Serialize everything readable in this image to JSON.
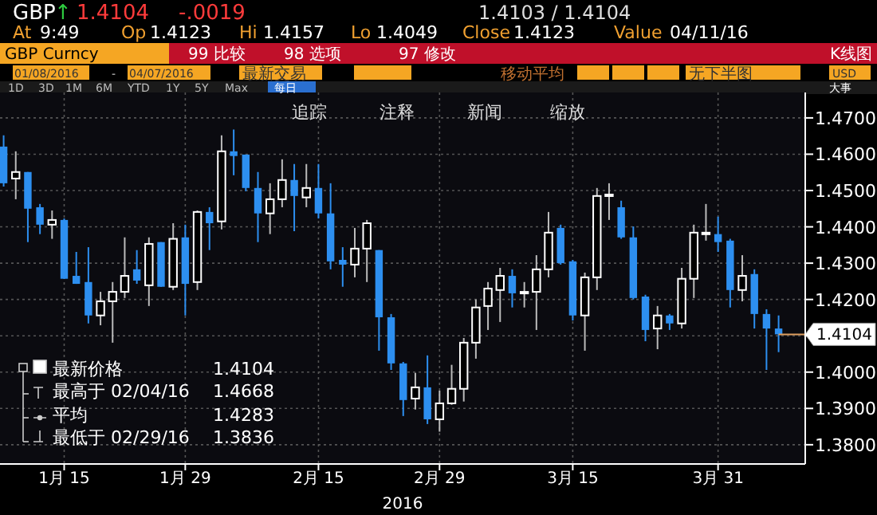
{
  "chart_data": {
    "type": "candlestick",
    "ohlc": [
      [
        1.4621,
        1.4652,
        1.4511,
        1.452
      ],
      [
        1.4533,
        1.4608,
        1.4476,
        1.4551
      ],
      [
        1.4551,
        1.4551,
        1.4358,
        1.445
      ],
      [
        1.4454,
        1.4463,
        1.438,
        1.4406
      ],
      [
        1.4406,
        1.4445,
        1.4367,
        1.4419
      ],
      [
        1.4419,
        1.4423,
        1.4257,
        1.4257
      ],
      [
        1.4265,
        1.4331,
        1.4243,
        1.4243
      ],
      [
        1.4248,
        1.4344,
        1.4134,
        1.4156
      ],
      [
        1.4156,
        1.4221,
        1.4129,
        1.4195
      ],
      [
        1.4195,
        1.4248,
        1.4081,
        1.4221
      ],
      [
        1.4221,
        1.4371,
        1.4204,
        1.4265
      ],
      [
        1.4283,
        1.4336,
        1.4243,
        1.4252
      ],
      [
        1.4239,
        1.4371,
        1.4182,
        1.4353
      ],
      [
        1.4358,
        1.4358,
        1.4235,
        1.4235
      ],
      [
        1.4235,
        1.441,
        1.4226,
        1.4367
      ],
      [
        1.4371,
        1.4406,
        1.4156,
        1.4243
      ],
      [
        1.4248,
        1.4445,
        1.4226,
        1.4441
      ],
      [
        1.4441,
        1.4454,
        1.4336,
        1.441
      ],
      [
        1.4415,
        1.4652,
        1.4393,
        1.4608
      ],
      [
        1.4608,
        1.4668,
        1.4542,
        1.4595
      ],
      [
        1.4599,
        1.4599,
        1.4498,
        1.4507
      ],
      [
        1.4507,
        1.4551,
        1.4358,
        1.4437
      ],
      [
        1.4437,
        1.452,
        1.438,
        1.4476
      ],
      [
        1.4476,
        1.4586,
        1.4454,
        1.4529
      ],
      [
        1.4529,
        1.4573,
        1.4388,
        1.4485
      ],
      [
        1.4481,
        1.4573,
        1.4454,
        1.4507
      ],
      [
        1.4507,
        1.4573,
        1.4423,
        1.4437
      ],
      [
        1.4437,
        1.452,
        1.4283,
        1.4305
      ],
      [
        1.4309,
        1.4344,
        1.4235,
        1.4296
      ],
      [
        1.4296,
        1.4397,
        1.4261,
        1.434
      ],
      [
        1.434,
        1.4419,
        1.4248,
        1.441
      ],
      [
        1.4336,
        1.4336,
        1.4059,
        1.4151
      ],
      [
        1.4151,
        1.416,
        1.4006,
        1.4024
      ],
      [
        1.4024,
        1.4028,
        1.3879,
        1.3923
      ],
      [
        1.3927,
        1.3998,
        1.3897,
        1.3958
      ],
      [
        1.3958,
        1.4046,
        1.3857,
        1.387
      ],
      [
        1.387,
        1.3949,
        1.3836,
        1.3914
      ],
      [
        1.3914,
        1.402,
        1.391,
        1.3954
      ],
      [
        1.3954,
        1.4094,
        1.3919,
        1.4081
      ],
      [
        1.4081,
        1.42,
        1.4037,
        1.4178
      ],
      [
        1.4182,
        1.4248,
        1.4116,
        1.423
      ],
      [
        1.4226,
        1.4287,
        1.4138,
        1.4265
      ],
      [
        1.4265,
        1.4283,
        1.4178,
        1.4217
      ],
      [
        1.4217,
        1.4248,
        1.4178,
        1.4221
      ],
      [
        1.4221,
        1.4322,
        1.4116,
        1.4283
      ],
      [
        1.4283,
        1.4441,
        1.4261,
        1.4384
      ],
      [
        1.4397,
        1.4406,
        1.4296,
        1.43
      ],
      [
        1.4305,
        1.4309,
        1.4142,
        1.4156
      ],
      [
        1.4156,
        1.4274,
        1.4059,
        1.4261
      ],
      [
        1.4261,
        1.4507,
        1.4226,
        1.4485
      ],
      [
        1.4485,
        1.452,
        1.4419,
        1.4489
      ],
      [
        1.4454,
        1.4472,
        1.4367,
        1.4371
      ],
      [
        1.4371,
        1.4401,
        1.42,
        1.4204
      ],
      [
        1.4208,
        1.4213,
        1.4085,
        1.4116
      ],
      [
        1.412,
        1.4182,
        1.4063,
        1.4156
      ],
      [
        1.4156,
        1.416,
        1.4116,
        1.4134
      ],
      [
        1.4134,
        1.4287,
        1.412,
        1.4257
      ],
      [
        1.4257,
        1.4406,
        1.4204,
        1.4384
      ],
      [
        1.438,
        1.4463,
        1.4362,
        1.4384
      ],
      [
        1.438,
        1.4428,
        1.4331,
        1.4358
      ],
      [
        1.4362,
        1.4367,
        1.4178,
        1.4226
      ],
      [
        1.4226,
        1.4322,
        1.4195,
        1.4265
      ],
      [
        1.427,
        1.4283,
        1.412,
        1.416
      ],
      [
        1.416,
        1.4173,
        1.4006,
        1.412
      ],
      [
        1.412,
        1.4156,
        1.4055,
        1.4104
      ]
    ],
    "colors": [
      "#2d8ff0",
      "#ffffff",
      "#2d8ff0",
      "#2d8ff0",
      "#ffffff",
      "#2d8ff0",
      "#2d8ff0",
      "#2d8ff0",
      "#ffffff",
      "#ffffff",
      "#ffffff",
      "#2d8ff0",
      "#ffffff",
      "#2d8ff0",
      "#ffffff",
      "#2d8ff0",
      "#ffffff",
      "#2d8ff0",
      "#ffffff",
      "#2d8ff0",
      "#2d8ff0",
      "#2d8ff0",
      "#ffffff",
      "#ffffff",
      "#2d8ff0",
      "#ffffff",
      "#2d8ff0",
      "#2d8ff0",
      "#2d8ff0",
      "#ffffff",
      "#ffffff",
      "#2d8ff0",
      "#2d8ff0",
      "#2d8ff0",
      "#ffffff",
      "#2d8ff0",
      "#ffffff",
      "#ffffff",
      "#ffffff",
      "#ffffff",
      "#ffffff",
      "#ffffff",
      "#2d8ff0",
      "#ffffff",
      "#ffffff",
      "#ffffff",
      "#2d8ff0",
      "#2d8ff0",
      "#ffffff",
      "#ffffff",
      "#ffffff",
      "#2d8ff0",
      "#2d8ff0",
      "#2d8ff0",
      "#ffffff",
      "#2d8ff0",
      "#ffffff",
      "#ffffff",
      "#ffffff",
      "#2d8ff0",
      "#2d8ff0",
      "#ffffff",
      "#2d8ff0",
      "#2d8ff0",
      "#2d8ff0"
    ],
    "categories": [
      null,
      null,
      null,
      null,
      null,
      "1月 15",
      null,
      null,
      null,
      null,
      null,
      null,
      null,
      null,
      null,
      "1月 29",
      null,
      null,
      null,
      null,
      null,
      null,
      null,
      null,
      null,
      null,
      "2月 15",
      null,
      null,
      null,
      null,
      null,
      null,
      null,
      null,
      null,
      "2月 29",
      null,
      null,
      null,
      null,
      null,
      null,
      null,
      null,
      null,
      null,
      "3月 15",
      null,
      null,
      null,
      null,
      null,
      null,
      null,
      null,
      null,
      null,
      null,
      "3月 31",
      null,
      null,
      null,
      null,
      null
    ],
    "xlabel": "2016",
    "ylim": [
      1.3747,
      1.477
    ],
    "yticks": [
      {
        "value": 1.38,
        "label": "1.3800"
      },
      {
        "value": 1.39,
        "label": "1.3900"
      },
      {
        "value": 1.4,
        "label": "1.4000"
      },
      {
        "value": 1.41,
        "label": null
      },
      {
        "value": 1.42,
        "label": "1.4200"
      },
      {
        "value": 1.43,
        "label": "1.4300"
      },
      {
        "value": 1.44,
        "label": "1.4400"
      },
      {
        "value": 1.45,
        "label": "1.4500"
      },
      {
        "value": 1.46,
        "label": "1.4600"
      },
      {
        "value": 1.47,
        "label": "1.4700"
      }
    ],
    "grid": true,
    "ref_lines": [
      {
        "axis": "y",
        "value": 1.4104,
        "label": "1.4104",
        "color": "#e0a060"
      }
    ],
    "annotations": [
      "GBP",
      "↑",
      "1.4104",
      "-.0019",
      "1.4103 / 1.4104",
      "At",
      "9:49",
      "Op",
      "1.4123",
      "Hi",
      "1.4157",
      "Lo",
      "1.4049",
      "Close",
      "1.4123",
      "Value",
      "04/11/16",
      "GBP Curncy",
      "99 比较",
      "98 选项",
      "97 修改",
      "K线图",
      "01/08/2016",
      "-",
      "04/07/2016",
      "最新交易",
      "移动平均",
      "无下半图",
      "USD",
      "1D",
      "3D",
      "1M",
      "6M",
      "YTD",
      "1Y",
      "5Y",
      "Max",
      "每日",
      "追踪",
      "注释",
      "新闻",
      "缩放",
      "最新价格",
      "1.4104",
      "最高于 02/04/16",
      "1.4668",
      "平均",
      "1.4283",
      "最低于 02/29/16",
      "1.3836",
      "大事"
    ]
  }
}
